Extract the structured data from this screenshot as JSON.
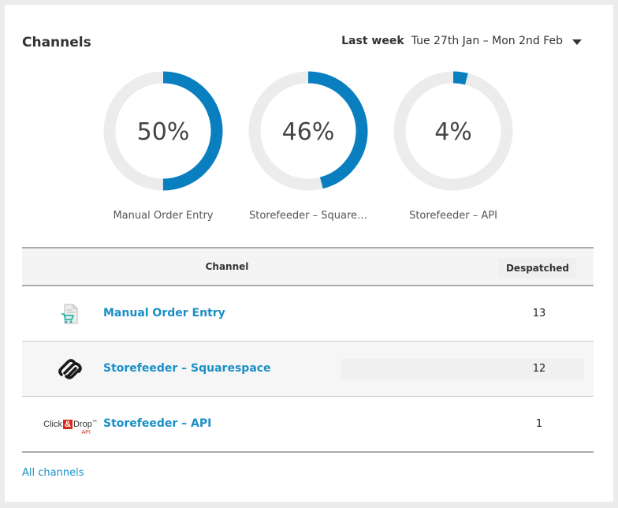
{
  "card": {
    "title": "Channels"
  },
  "period": {
    "label": "Last week",
    "range": "Tue 27th Jan – Mon 2nd Feb"
  },
  "colors": {
    "accent": "#0a7fc0",
    "track": "#ececec",
    "link": "#1a8fc7"
  },
  "donuts": [
    {
      "pct_label": "50%",
      "fraction": 0.5,
      "label": "Manual Order Entry"
    },
    {
      "pct_label": "46%",
      "fraction": 0.46,
      "label": "Storefeeder – Square…"
    },
    {
      "pct_label": "4%",
      "fraction": 0.04,
      "label": "Storefeeder – API"
    }
  ],
  "table": {
    "headers": {
      "channel": "Channel",
      "despatched": "Despatched"
    },
    "rows": [
      {
        "icon": "shopping-cart-document-icon",
        "name": "Manual Order Entry",
        "count": "13"
      },
      {
        "icon": "squarespace-logo-icon",
        "name": "Storefeeder – Squarespace",
        "count": "12"
      },
      {
        "icon": "click-and-drop-api-logo-icon",
        "name": "Storefeeder – API",
        "count": "1",
        "logo_text": {
          "left": "Click",
          "amp": "&",
          "right": "Drop",
          "tm": "™",
          "sub": "API"
        }
      }
    ]
  },
  "footer": {
    "all_channels": "All channels"
  }
}
